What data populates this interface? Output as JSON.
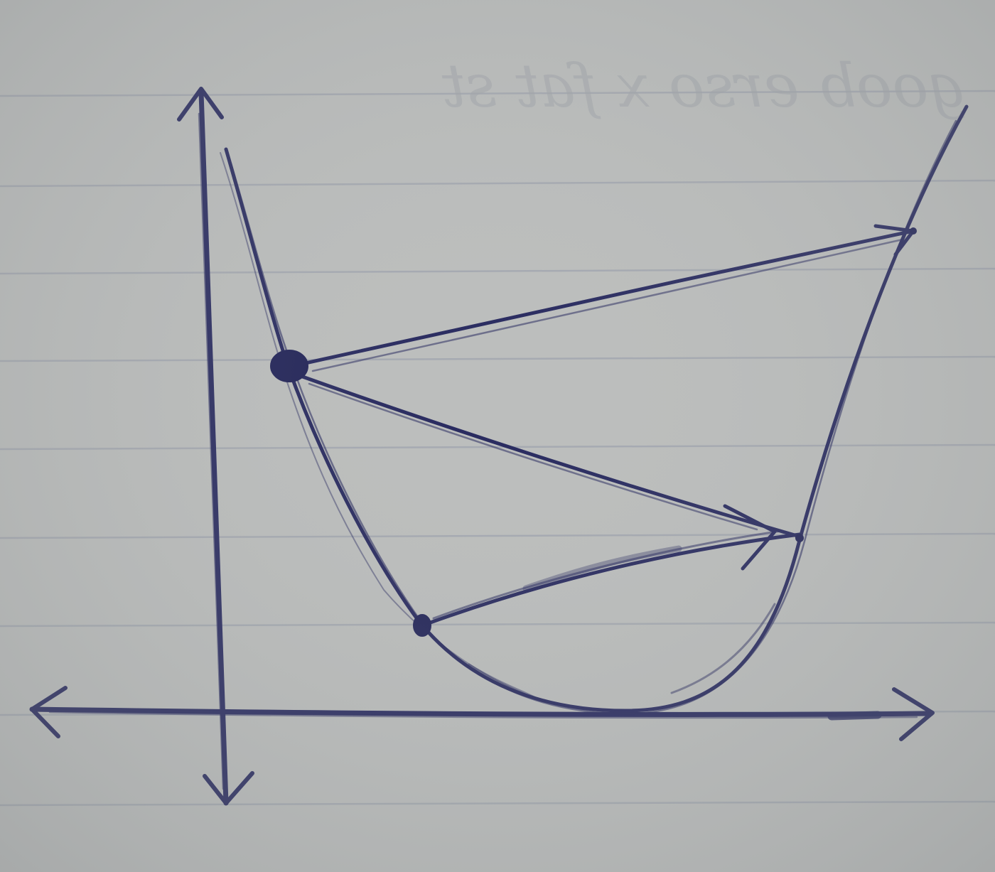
{
  "paper": {
    "background": "#bcbebd",
    "rule_color": "#9ea3ad",
    "bleed_through_lines": [
      "",
      "goob   erso   x   fat  st"
    ]
  },
  "ink": {
    "color": "#26285e",
    "light_color": "#3a3d78"
  },
  "diagram": {
    "axes": {
      "y_axis_arrows": [
        "up",
        "down"
      ],
      "x_axis_arrows": [
        "left",
        "right"
      ]
    },
    "curve": {
      "shape": "parabola-like valley",
      "minimum_on_x_axis": true
    },
    "points": [
      {
        "id": "start",
        "style": "large-filled-dot"
      },
      {
        "id": "right-high",
        "style": "arrow-head"
      },
      {
        "id": "right-low",
        "style": "arrow-head"
      },
      {
        "id": "left-low",
        "style": "small-filled-dot"
      }
    ],
    "jumps": [
      {
        "from": "start",
        "to": "right-high"
      },
      {
        "from": "start",
        "to": "right-low"
      },
      {
        "from": "left-low",
        "to": "right-low"
      }
    ]
  }
}
